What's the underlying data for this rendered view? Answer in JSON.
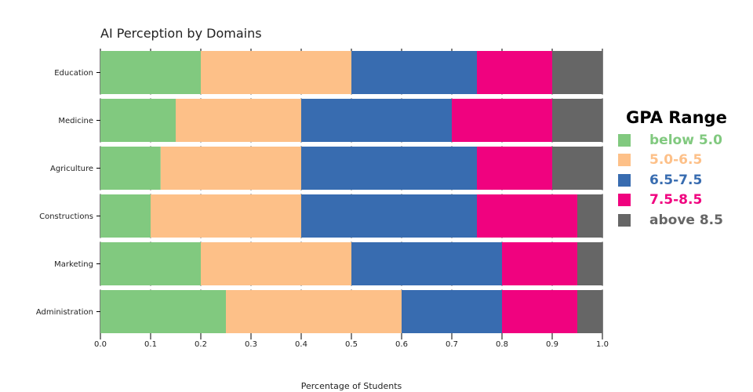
{
  "chart_data": {
    "type": "bar",
    "orientation": "horizontal",
    "stacked": true,
    "title": "AI Perception by Domains",
    "xlabel": "Percentage of Students",
    "ylabel": "",
    "xlim": [
      0,
      1
    ],
    "x_ticks": [
      "0.0",
      "0.1",
      "0.2",
      "0.3",
      "0.4",
      "0.5",
      "0.6",
      "0.7",
      "0.8",
      "0.9",
      "1.0"
    ],
    "grid": true,
    "categories": [
      "Education",
      "Medicine",
      "Agriculture",
      "Constructions",
      "Marketing",
      "Administration"
    ],
    "series": [
      {
        "name": "below 5.0",
        "color": "#81c97f",
        "values": [
          0.2,
          0.15,
          0.12,
          0.1,
          0.2,
          0.25
        ]
      },
      {
        "name": "5.0-6.5",
        "color": "#fdc088",
        "values": [
          0.3,
          0.25,
          0.28,
          0.3,
          0.3,
          0.35
        ]
      },
      {
        "name": "6.5-7.5",
        "color": "#386cb0",
        "values": [
          0.25,
          0.3,
          0.35,
          0.35,
          0.3,
          0.2
        ]
      },
      {
        "name": "7.5-8.5",
        "color": "#f0027f",
        "values": [
          0.15,
          0.2,
          0.15,
          0.2,
          0.15,
          0.15
        ]
      },
      {
        "name": "above 8.5",
        "color": "#666666",
        "values": [
          0.1,
          0.1,
          0.1,
          0.05,
          0.05,
          0.05
        ]
      }
    ],
    "legend": {
      "title": "GPA Range",
      "position": "right"
    }
  }
}
